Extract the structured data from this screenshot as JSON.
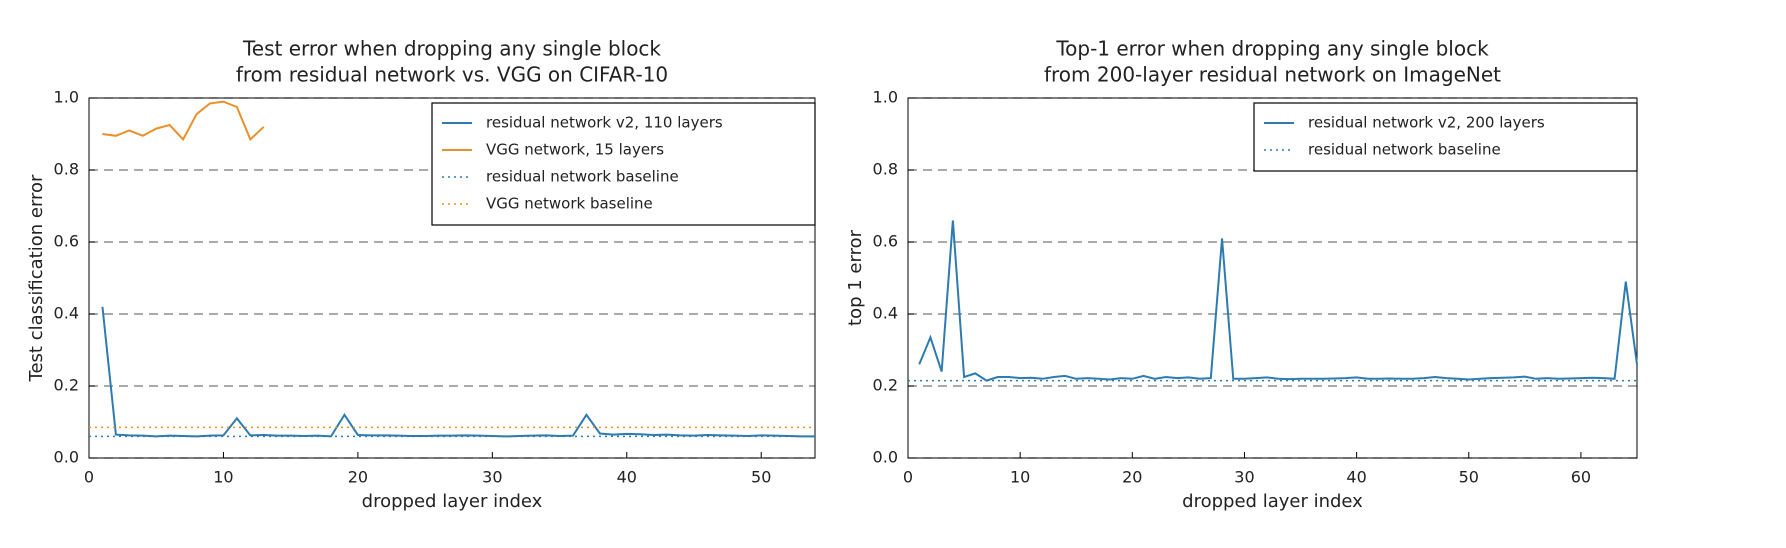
{
  "chart_data": [
    {
      "type": "line",
      "title": [
        "Test error when dropping any single block",
        "from residual network vs. VGG on CIFAR-10"
      ],
      "x_label": "dropped layer index",
      "y_label": "Test classification error",
      "xlim": [
        0,
        54
      ],
      "xticks": [
        0,
        10,
        20,
        30,
        40,
        50
      ],
      "ylim": [
        0,
        1
      ],
      "yticks": [
        {
          "value": 0,
          "label": "0.0"
        },
        0.2,
        0.4,
        0.6,
        0.8,
        {
          "value": 1,
          "label": "1.0"
        }
      ],
      "grid": true,
      "legend": "upper right",
      "series": [
        {
          "name": "residual network v2, 110 layers",
          "color": "#2e7bb0",
          "style": "solid",
          "x": [
            1,
            2,
            3,
            4,
            5,
            6,
            7,
            8,
            9,
            10,
            11,
            12,
            13,
            14,
            15,
            16,
            17,
            18,
            19,
            20,
            21,
            22,
            23,
            24,
            25,
            26,
            27,
            28,
            29,
            30,
            31,
            32,
            33,
            34,
            35,
            36,
            37,
            38,
            39,
            40,
            41,
            42,
            43,
            44,
            45,
            46,
            47,
            48,
            49,
            50,
            51,
            52,
            53,
            54
          ],
          "values": [
            0.42,
            0.065,
            0.063,
            0.062,
            0.06,
            0.062,
            0.061,
            0.06,
            0.062,
            0.063,
            0.11,
            0.063,
            0.064,
            0.062,
            0.062,
            0.061,
            0.062,
            0.06,
            0.12,
            0.064,
            0.063,
            0.063,
            0.062,
            0.061,
            0.061,
            0.062,
            0.062,
            0.063,
            0.062,
            0.061,
            0.06,
            0.061,
            0.062,
            0.063,
            0.061,
            0.062,
            0.12,
            0.068,
            0.065,
            0.067,
            0.066,
            0.064,
            0.065,
            0.063,
            0.062,
            0.064,
            0.063,
            0.062,
            0.061,
            0.063,
            0.062,
            0.061,
            0.06,
            0.06
          ]
        },
        {
          "name": "VGG network, 15 layers",
          "color": "#e8912a",
          "style": "solid",
          "x": [
            1,
            2,
            3,
            4,
            5,
            6,
            7,
            8,
            9,
            10,
            11,
            12,
            13
          ],
          "values": [
            0.9,
            0.895,
            0.91,
            0.895,
            0.915,
            0.925,
            0.885,
            0.955,
            0.985,
            0.99,
            0.975,
            0.885,
            0.92
          ]
        },
        {
          "name": "residual network baseline",
          "color": "#2e7bb0",
          "style": "dotted",
          "values": [
            0.06
          ]
        },
        {
          "name": "VGG network baseline",
          "color": "#e8912a",
          "style": "dotted",
          "values": [
            0.085
          ]
        }
      ]
    },
    {
      "type": "line",
      "title": [
        "Top-1 error when dropping any single block",
        "from 200-layer residual network on ImageNet"
      ],
      "x_label": "dropped layer index",
      "y_label": "top 1 error",
      "xlim": [
        0,
        65
      ],
      "xticks": [
        0,
        10,
        20,
        30,
        40,
        50,
        60
      ],
      "ylim": [
        0,
        1
      ],
      "yticks": [
        {
          "value": 0,
          "label": "0.0"
        },
        0.2,
        0.4,
        0.6,
        0.8,
        {
          "value": 1,
          "label": "1.0"
        }
      ],
      "grid": true,
      "legend": "upper right",
      "series": [
        {
          "name": "residual network v2, 200 layers",
          "color": "#2e7bb0",
          "style": "solid",
          "x": [
            1,
            2,
            3,
            4,
            5,
            6,
            7,
            8,
            9,
            10,
            11,
            12,
            13,
            14,
            15,
            16,
            17,
            18,
            19,
            20,
            21,
            22,
            23,
            24,
            25,
            26,
            27,
            28,
            29,
            30,
            31,
            32,
            33,
            34,
            35,
            36,
            37,
            38,
            39,
            40,
            41,
            42,
            43,
            44,
            45,
            46,
            47,
            48,
            49,
            50,
            51,
            52,
            53,
            54,
            55,
            56,
            57,
            58,
            59,
            60,
            61,
            62,
            63,
            64,
            65
          ],
          "values": [
            0.26,
            0.335,
            0.24,
            0.66,
            0.225,
            0.235,
            0.215,
            0.225,
            0.225,
            0.222,
            0.223,
            0.22,
            0.225,
            0.228,
            0.22,
            0.222,
            0.22,
            0.218,
            0.222,
            0.22,
            0.228,
            0.22,
            0.225,
            0.222,
            0.224,
            0.22,
            0.222,
            0.61,
            0.22,
            0.22,
            0.222,
            0.224,
            0.22,
            0.219,
            0.22,
            0.22,
            0.22,
            0.221,
            0.222,
            0.224,
            0.22,
            0.22,
            0.221,
            0.22,
            0.22,
            0.222,
            0.225,
            0.222,
            0.22,
            0.218,
            0.22,
            0.222,
            0.223,
            0.224,
            0.226,
            0.22,
            0.222,
            0.22,
            0.221,
            0.222,
            0.223,
            0.222,
            0.22,
            0.49,
            0.26
          ]
        },
        {
          "name": "residual network baseline",
          "color": "#2e7bb0",
          "style": "dotted",
          "values": [
            0.215
          ]
        }
      ]
    }
  ]
}
